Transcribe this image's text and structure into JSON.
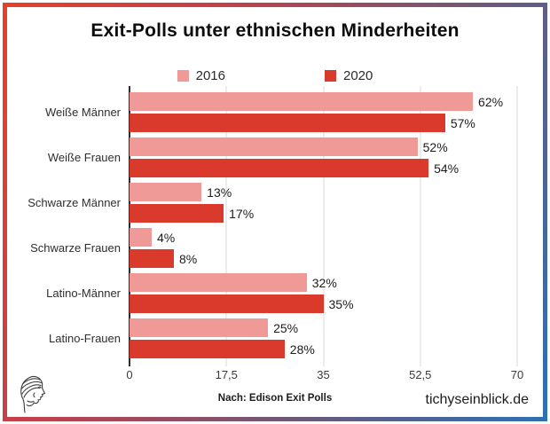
{
  "title": "Exit-Polls unter ethnischen Minderheiten",
  "colors": {
    "bar_2016": "#EF9A96",
    "bar_2020": "#D93A2B",
    "axis": "#2e2e2e",
    "gridline": "#d9d9d9",
    "frame_gradient": [
      "#E7402B",
      "#6F5878",
      "#2F6FB4"
    ]
  },
  "legend": [
    {
      "label": "2016",
      "color": "#EF9A96"
    },
    {
      "label": "2020",
      "color": "#D93A2B"
    }
  ],
  "chart_data": {
    "type": "bar",
    "orientation": "horizontal",
    "title": "Exit-Polls unter ethnischen Minderheiten",
    "categories": [
      "Weiße Männer",
      "Weiße Frauen",
      "Schwarze Männer",
      "Schwarze Frauen",
      "Latino-Männer",
      "Latino-Frauen"
    ],
    "series": [
      {
        "name": "2016",
        "color": "#EF9A96",
        "values": [
          62,
          52,
          13,
          4,
          32,
          25
        ]
      },
      {
        "name": "2020",
        "color": "#D93A2B",
        "values": [
          57,
          54,
          17,
          8,
          35,
          28
        ]
      }
    ],
    "value_suffix": "%",
    "xlim": [
      0,
      70
    ],
    "x_ticks": [
      "0",
      "17,5",
      "35",
      "52,5",
      "70"
    ],
    "grid": true,
    "legend_position": "top"
  },
  "footer": {
    "source": "Nach: Edison Exit Polls",
    "site": "tichyseinblick.de"
  },
  "icons": {
    "logo": "classical-head-profile-logo"
  }
}
